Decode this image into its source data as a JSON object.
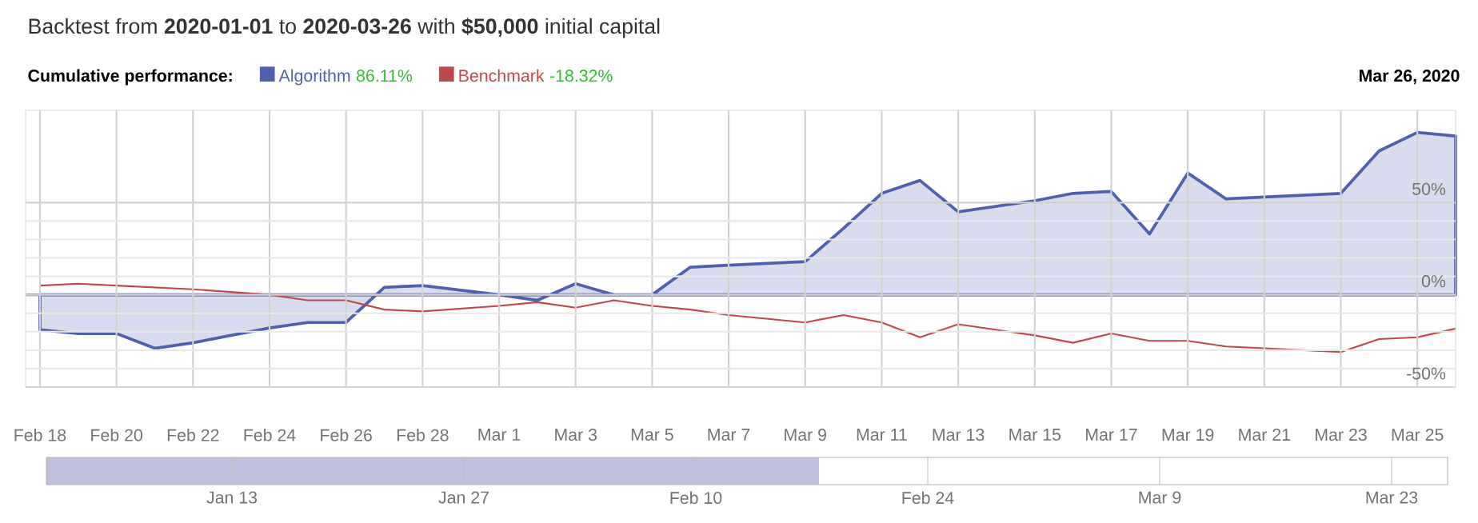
{
  "chart_data": [
    {
      "type": "line",
      "title": "Backtest from **2020-01-01** to **2020-03-26** with **$50,000** initial capital",
      "legend_title": "Cumulative performance:",
      "legend": "top left",
      "grid": true,
      "annotations": [
        "86.11%",
        "-18.32%",
        "Mar 26, 2020"
      ],
      "xlim": [
        "2020-02-17T15:00",
        "2020-03-26"
      ],
      "ylim": [
        -50,
        100
      ],
      "xticks": [
        {
          "value": "2020-02-18",
          "label": "Feb 18"
        },
        {
          "value": "2020-02-20",
          "label": "Feb 20"
        },
        {
          "value": "2020-02-22",
          "label": "Feb 22"
        },
        {
          "value": "2020-02-24",
          "label": "Feb 24"
        },
        {
          "value": "2020-02-26",
          "label": "Feb 26"
        },
        {
          "value": "2020-02-28",
          "label": "Feb 28"
        },
        {
          "value": "2020-03-01",
          "label": "Mar 1"
        },
        {
          "value": "2020-03-03",
          "label": "Mar 3"
        },
        {
          "value": "2020-03-05",
          "label": "Mar 5"
        },
        {
          "value": "2020-03-07",
          "label": "Mar 7"
        },
        {
          "value": "2020-03-09",
          "label": "Mar 9"
        },
        {
          "value": "2020-03-11",
          "label": "Mar 11"
        },
        {
          "value": "2020-03-13",
          "label": "Mar 13"
        },
        {
          "value": "2020-03-15",
          "label": "Mar 15"
        },
        {
          "value": "2020-03-17",
          "label": "Mar 17"
        },
        {
          "value": "2020-03-19",
          "label": "Mar 19"
        },
        {
          "value": "2020-03-21",
          "label": "Mar 21"
        },
        {
          "value": "2020-03-23",
          "label": "Mar 23"
        },
        {
          "value": "2020-03-25",
          "label": "Mar 25"
        }
      ],
      "yticks": [
        {
          "value": -50,
          "label": "-50%"
        },
        {
          "value": 0,
          "label": "0%"
        },
        {
          "value": 50,
          "label": "50%"
        }
      ],
      "ref_lines": [
        {
          "axis": "y",
          "value": 0,
          "color": "#777777"
        }
      ],
      "series": [
        {
          "name": "Algorithm",
          "type": "area",
          "color": "#5060b0",
          "x": [
            "2020-02-18",
            "2020-02-19",
            "2020-02-20",
            "2020-02-21",
            "2020-02-22",
            "2020-02-24",
            "2020-02-25",
            "2020-02-26",
            "2020-02-27",
            "2020-02-28",
            "2020-03-01",
            "2020-03-02",
            "2020-03-03",
            "2020-03-04",
            "2020-03-05",
            "2020-03-06",
            "2020-03-07",
            "2020-03-09",
            "2020-03-10",
            "2020-03-11",
            "2020-03-12",
            "2020-03-13",
            "2020-03-15",
            "2020-03-16",
            "2020-03-17",
            "2020-03-18",
            "2020-03-19",
            "2020-03-20",
            "2020-03-23",
            "2020-03-24",
            "2020-03-25",
            "2020-03-26"
          ],
          "values": [
            -19,
            -21,
            -21,
            -29,
            -26,
            -18,
            -15,
            -15,
            4,
            5,
            0,
            -3,
            6,
            0,
            0,
            15,
            16,
            18,
            36,
            55,
            62,
            45,
            51,
            55,
            56,
            33,
            66,
            52,
            55,
            78,
            88,
            86.11
          ]
        },
        {
          "name": "Benchmark",
          "type": "line",
          "color": "#c0474a",
          "x": [
            "2020-02-18",
            "2020-02-19",
            "2020-02-20",
            "2020-02-22",
            "2020-02-24",
            "2020-02-25",
            "2020-02-26",
            "2020-02-27",
            "2020-02-28",
            "2020-03-01",
            "2020-03-02",
            "2020-03-03",
            "2020-03-04",
            "2020-03-05",
            "2020-03-06",
            "2020-03-07",
            "2020-03-09",
            "2020-03-10",
            "2020-03-11",
            "2020-03-12",
            "2020-03-13",
            "2020-03-15",
            "2020-03-16",
            "2020-03-17",
            "2020-03-18",
            "2020-03-19",
            "2020-03-20",
            "2020-03-23",
            "2020-03-24",
            "2020-03-25",
            "2020-03-26"
          ],
          "values": [
            5,
            6,
            5,
            3,
            0,
            -3,
            -3,
            -8,
            -9,
            -6,
            -4,
            -7,
            -3,
            -6,
            -8,
            -11,
            -15,
            -11,
            -15,
            -23,
            -16,
            -22,
            -26,
            -21,
            -25,
            -25,
            -28,
            -31,
            -24,
            -23,
            -18.32
          ]
        }
      ]
    },
    {
      "type": "other",
      "annotations": [
        "Jan 13",
        "Jan 27",
        "Feb 10",
        "Feb 24",
        "Mar 9",
        "Mar 23"
      ]
    }
  ]
}
